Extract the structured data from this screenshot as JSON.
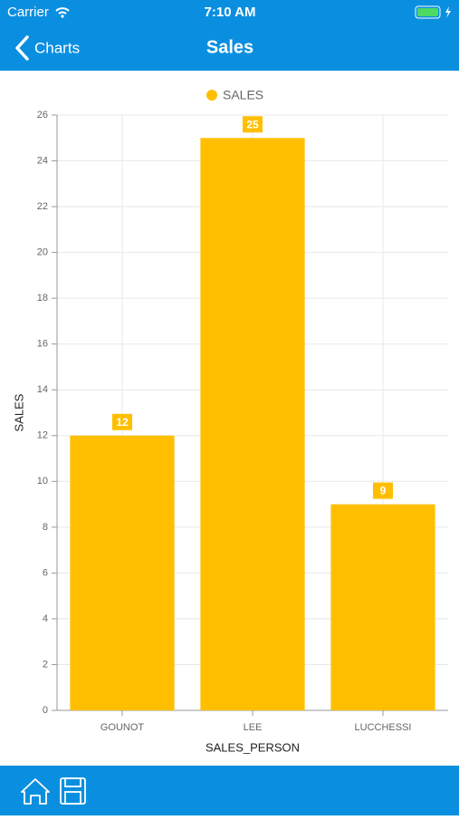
{
  "status_bar": {
    "carrier": "Carrier",
    "time": "7:10 AM"
  },
  "nav_bar": {
    "back": "Charts",
    "title": "Sales"
  },
  "chart_data": {
    "type": "bar",
    "categories": [
      "GOUNOT",
      "LEE",
      "LUCCHESSI"
    ],
    "series": [
      {
        "name": "SALES",
        "color": "#ffbf00",
        "values": [
          12,
          25,
          9
        ]
      }
    ],
    "x_label": "SALES_PERSON",
    "y_label": "SALES",
    "ylim": [
      0,
      26
    ],
    "yticks": [
      0,
      2,
      4,
      6,
      8,
      10,
      12,
      14,
      16,
      18,
      20,
      22,
      24,
      26
    ],
    "grid": true,
    "legend": "top"
  }
}
